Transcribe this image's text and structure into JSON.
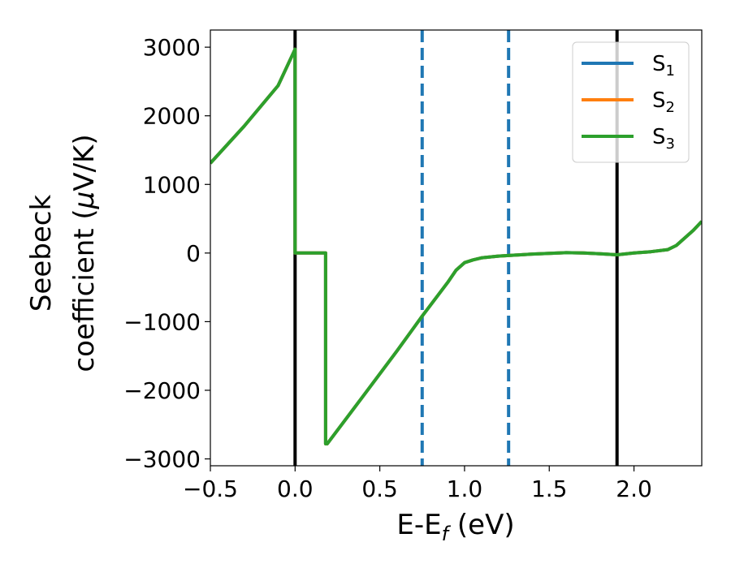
{
  "chart_data": {
    "type": "line",
    "xlabel_main": "E-E",
    "xlabel_sub": "f",
    "xlabel_tail": " (eV)",
    "ylabel_line1": "Seebeck",
    "ylabel_line2_a": "coefficient  (",
    "ylabel_mu": "μ",
    "ylabel_line2_b": "V/K)",
    "xlim": [
      -0.5,
      2.4
    ],
    "ylim": [
      -3100,
      3250
    ],
    "xticks": [
      -0.5,
      0.0,
      0.5,
      1.0,
      1.5,
      2.0
    ],
    "xtick_labels": [
      "−0.5",
      "0.0",
      "0.5",
      "1.0",
      "1.5",
      "2.0"
    ],
    "yticks": [
      -3000,
      -2000,
      -1000,
      0,
      1000,
      2000,
      3000
    ],
    "ytick_labels": [
      "−3000",
      "−2000",
      "−1000",
      "0",
      "1000",
      "2000",
      "3000"
    ],
    "legend_position": "top-right",
    "series": [
      {
        "name_main": "S",
        "name_sub": "1",
        "color": "#1f77b4"
      },
      {
        "name_main": "S",
        "name_sub": "2",
        "color": "#ff7f0e"
      },
      {
        "name_main": "S",
        "name_sub": "3",
        "color": "#2ca02c"
      }
    ],
    "curve": {
      "x": [
        -0.5,
        -0.3,
        -0.1,
        0.0,
        0.0,
        0.18,
        0.18,
        0.19,
        0.4,
        0.6,
        0.75,
        0.9,
        0.95,
        1.0,
        1.05,
        1.1,
        1.2,
        1.3,
        1.4,
        1.5,
        1.6,
        1.7,
        1.8,
        1.9,
        2.0,
        2.1,
        2.2,
        2.25,
        2.3,
        2.35,
        2.4
      ],
      "y": [
        1310,
        1850,
        2440,
        2970,
        0,
        0,
        -2780,
        -2780,
        -2090,
        -1430,
        -920,
        -430,
        -250,
        -140,
        -100,
        -70,
        -45,
        -30,
        -15,
        -5,
        5,
        0,
        -10,
        -25,
        0,
        20,
        50,
        110,
        220,
        330,
        460
      ]
    },
    "vlines_solid": [
      0.0,
      1.9
    ],
    "vlines_dashed": [
      0.75,
      1.26
    ],
    "solid_line_color": "#000000",
    "dashed_line_color": "#1f77b4"
  }
}
